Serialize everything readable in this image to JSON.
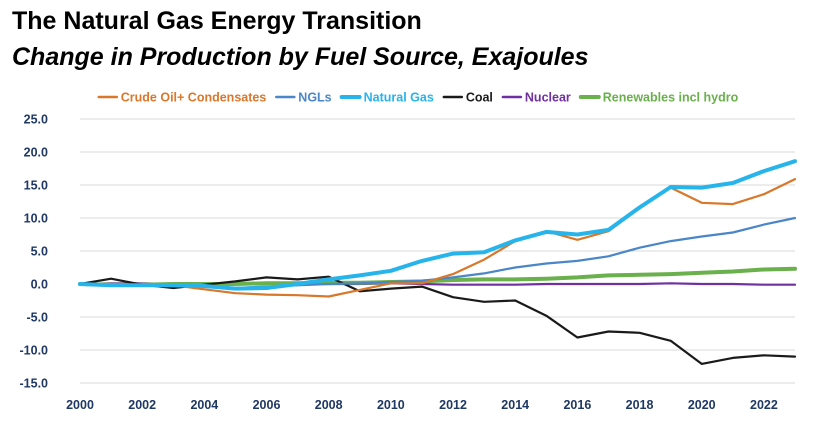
{
  "header": {
    "title": "The Natural Gas Energy Transition",
    "subtitle": "Change in Production by Fuel Source, Exajoules"
  },
  "chart_data": {
    "type": "line",
    "title": "The Natural Gas Energy Transition",
    "subtitle": "Change in Production by Fuel Source, Exajoules",
    "xlabel": "",
    "ylabel": "",
    "x": [
      2000,
      2001,
      2002,
      2003,
      2004,
      2005,
      2006,
      2007,
      2008,
      2009,
      2010,
      2011,
      2012,
      2013,
      2014,
      2015,
      2016,
      2017,
      2018,
      2019,
      2020,
      2021,
      2022,
      2023
    ],
    "xlim": [
      2000,
      2023
    ],
    "ylim": [
      -15,
      25
    ],
    "x_ticks": [
      "2000",
      "2002",
      "2004",
      "2006",
      "2008",
      "2010",
      "2012",
      "2014",
      "2016",
      "2018",
      "2020",
      "2022"
    ],
    "y_ticks": [
      "25.0",
      "20.0",
      "15.0",
      "10.0",
      "5.0",
      "0.0",
      "-5.0",
      "-10.0",
      "-15.0"
    ],
    "grid": "horizontal",
    "legend_position": "top",
    "series": [
      {
        "name": "Crude Oil+ Condensates",
        "color": "#d9772b",
        "values": [
          0.0,
          -0.2,
          -0.1,
          -0.2,
          -0.8,
          -1.4,
          -1.6,
          -1.7,
          -1.9,
          -0.9,
          0.1,
          0.1,
          1.5,
          3.7,
          6.5,
          8.0,
          6.7,
          8.0,
          11.5,
          14.6,
          12.3,
          12.1,
          13.6,
          15.9
        ]
      },
      {
        "name": "NGLs",
        "color": "#4a86c8",
        "values": [
          0.0,
          -0.1,
          -0.1,
          -0.3,
          -0.4,
          -0.6,
          -0.4,
          -0.2,
          0.0,
          0.1,
          0.3,
          0.5,
          1.0,
          1.6,
          2.5,
          3.1,
          3.5,
          4.2,
          5.5,
          6.5,
          7.2,
          7.8,
          9.0,
          10.0
        ]
      },
      {
        "name": "Natural Gas",
        "color": "#27b4ea",
        "values": [
          0.0,
          -0.2,
          -0.2,
          -0.2,
          -0.3,
          -0.7,
          -0.6,
          0.0,
          0.7,
          1.3,
          2.0,
          3.5,
          4.6,
          4.8,
          6.6,
          7.9,
          7.5,
          8.2,
          11.6,
          14.7,
          14.6,
          15.3,
          17.1,
          18.6
        ]
      },
      {
        "name": "Coal",
        "color": "#1a1a1a",
        "values": [
          0.0,
          0.8,
          -0.1,
          -0.6,
          -0.1,
          0.4,
          1.0,
          0.7,
          1.1,
          -1.1,
          -0.7,
          -0.4,
          -2.0,
          -2.7,
          -2.5,
          -4.8,
          -8.1,
          -7.2,
          -7.4,
          -8.6,
          -12.1,
          -11.2,
          -10.8,
          -11.0
        ]
      },
      {
        "name": "Nuclear",
        "color": "#7030a0",
        "values": [
          0.0,
          0.1,
          0.1,
          0.0,
          0.1,
          0.1,
          0.1,
          0.0,
          0.0,
          0.0,
          0.1,
          0.0,
          -0.1,
          -0.1,
          -0.1,
          0.0,
          0.0,
          0.0,
          0.0,
          0.1,
          0.0,
          0.0,
          -0.1,
          -0.1
        ]
      },
      {
        "name": "Renewables incl hydro",
        "color": "#6ab04c",
        "values": [
          0.0,
          -0.1,
          -0.1,
          0.0,
          0.0,
          0.0,
          0.1,
          0.1,
          0.2,
          0.2,
          0.3,
          0.4,
          0.6,
          0.7,
          0.7,
          0.8,
          1.0,
          1.3,
          1.4,
          1.5,
          1.7,
          1.9,
          2.2,
          2.3
        ]
      }
    ]
  }
}
